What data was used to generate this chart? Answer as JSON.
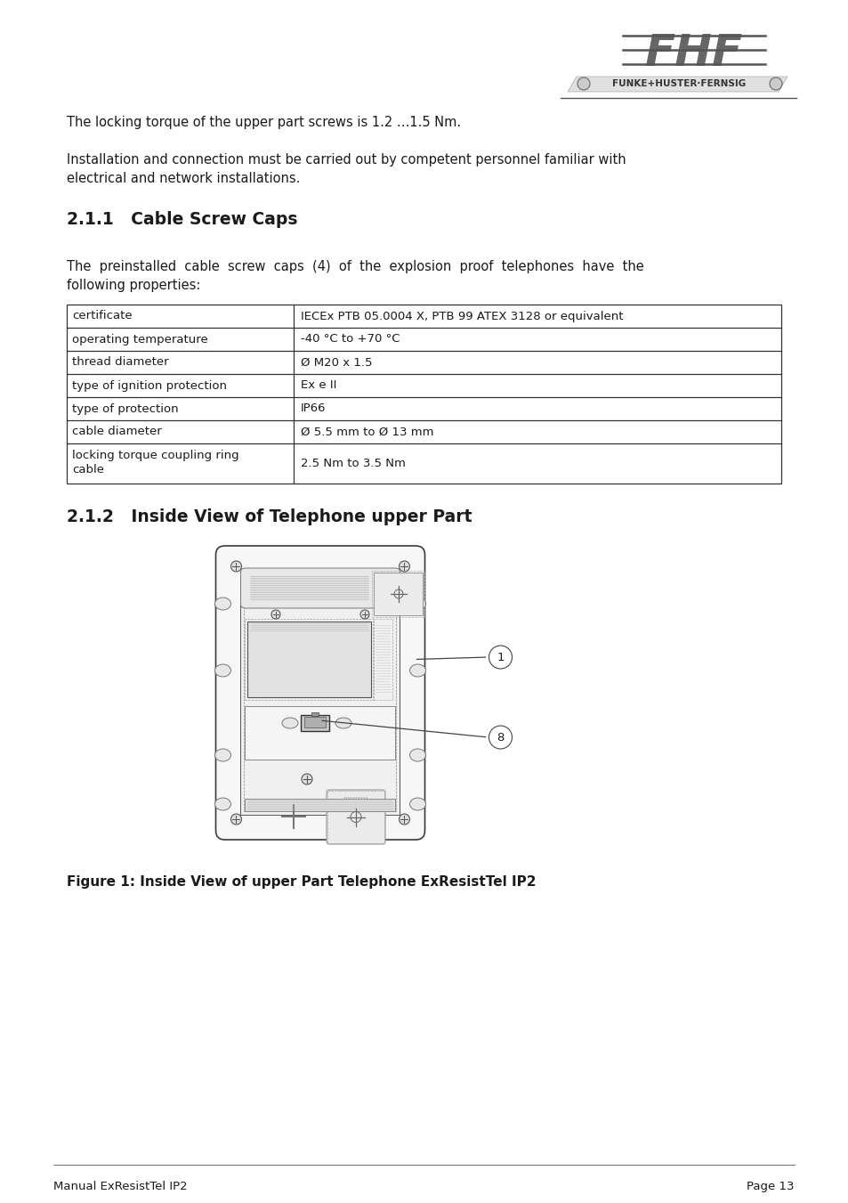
{
  "page_bg": "#ffffff",
  "text_color": "#1a1a1a",
  "para1": "The locking torque of the upper part screws is 1.2 …1.5 Nm.",
  "para2_line1": "Installation and connection must be carried out by competent personnel familiar with",
  "para2_line2": "electrical and network installations.",
  "section_title": "2.1.1   Cable Screw Caps",
  "para3_line1": "The  preinstalled  cable  screw  caps  (4)  of  the  explosion  proof  telephones  have  the",
  "para3_line2": "following properties:",
  "table_rows": [
    [
      "certificate",
      "IECEx PTB 05.0004 X, PTB 99 ATEX 3128 or equivalent"
    ],
    [
      "operating temperature",
      "-40 °C to +70 °C"
    ],
    [
      "thread diameter",
      "Ø M20 x 1.5"
    ],
    [
      "type of ignition protection",
      "Ex e II"
    ],
    [
      "type of protection",
      "IP66"
    ],
    [
      "cable diameter",
      "Ø 5.5 mm to Ø 13 mm"
    ],
    [
      "locking torque coupling ring\ncable",
      "2.5 Nm to 3.5 Nm"
    ]
  ],
  "section2_title": "2.1.2   Inside View of Telephone upper Part",
  "figure_caption": "Figure 1: Inside View of upper Part Telephone ExResistTel IP2",
  "footer_left": "Manual ExResistTel IP2",
  "footer_right": "Page 13",
  "logo_text_big": "FHF",
  "logo_text_small": "FUNKE+HUSTER·FERNSIG"
}
